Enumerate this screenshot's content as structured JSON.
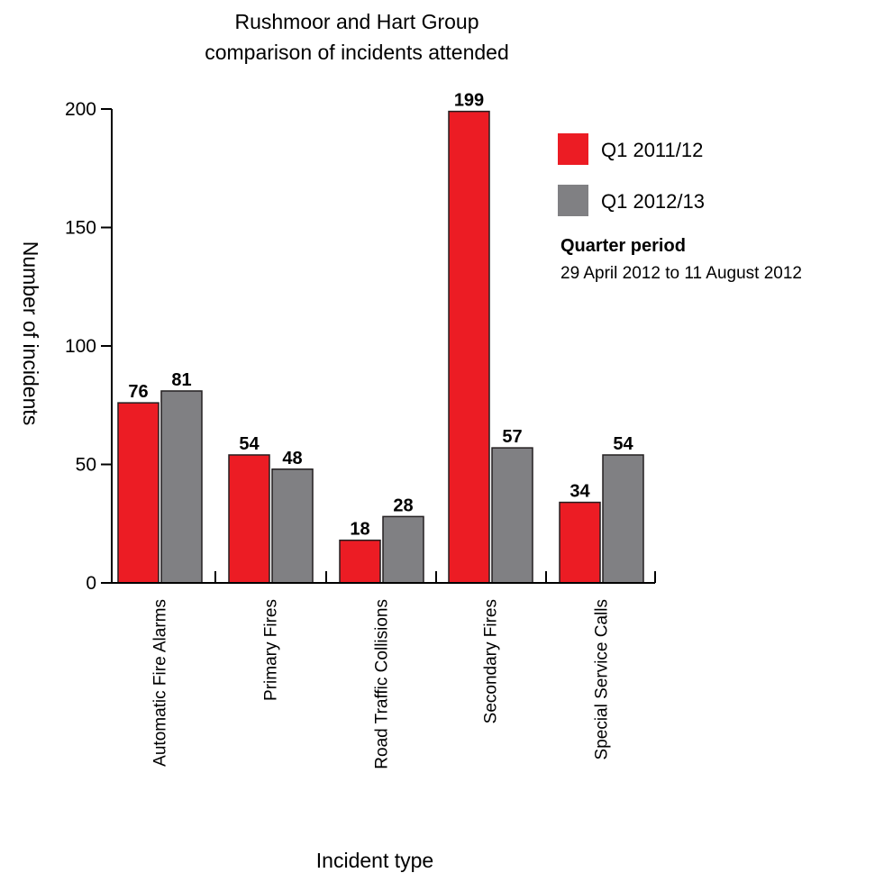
{
  "chart_data": {
    "type": "bar",
    "title_lines": [
      "Rushmoor and Hart Group",
      "comparison of incidents attended"
    ],
    "xlabel": "Incident type",
    "ylabel": "Number of incidents",
    "ylim": [
      0,
      200
    ],
    "yticks": [
      "0",
      "50",
      "100",
      "150",
      "200"
    ],
    "categories": [
      "Automatic Fire Alarms",
      "Primary Fires",
      "Road Traffic Collisions",
      "Secondary Fires",
      "Special Service Calls"
    ],
    "series": [
      {
        "name": "Q1 2011/12",
        "color": "#ec1c24",
        "values": [
          76,
          54,
          18,
          199,
          34
        ],
        "labels": [
          "76",
          "54",
          "18",
          "199",
          "34"
        ]
      },
      {
        "name": "Q1 2012/13",
        "color": "#808083",
        "values": [
          81,
          48,
          28,
          57,
          54
        ],
        "labels": [
          "81",
          "48",
          "28",
          "57",
          "54"
        ]
      }
    ],
    "legend_position": "right",
    "note": {
      "heading": "Quarter period",
      "text": "29 April 2012 to 11 August 2012"
    },
    "grid": false
  }
}
